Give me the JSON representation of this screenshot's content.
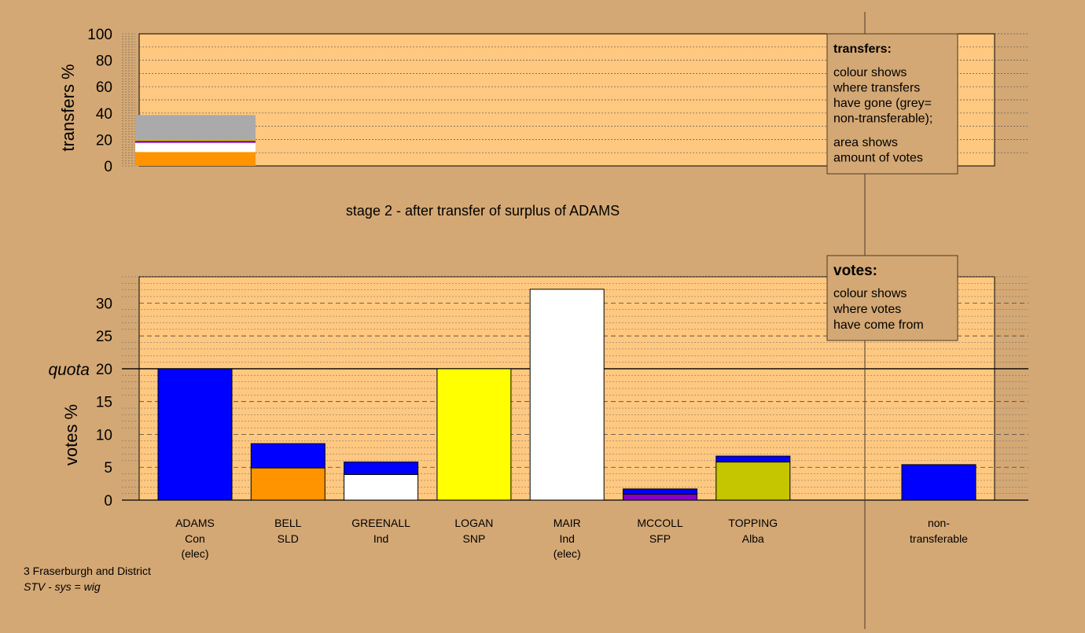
{
  "stage_title": "stage 2 - after transfer of surplus of ADAMS",
  "footer": {
    "line1": "3 Fraserburgh and District",
    "line2": "STV - sys = wig"
  },
  "legend_transfers": {
    "title": "transfers:",
    "lines1": [
      "colour shows",
      "where transfers",
      "have gone (grey=",
      "non-transferable);"
    ],
    "lines2": [
      "area shows",
      "amount of votes"
    ]
  },
  "legend_votes": {
    "title": "votes:",
    "lines": [
      "colour shows",
      "where votes",
      "have come from"
    ]
  },
  "colors": {
    "background": "#d4a874",
    "plot_bg": "#ffc880",
    "Con": "#0000ff",
    "SLD": "#ff9400",
    "Ind": "#ffffff",
    "SNP": "#ffff00",
    "SFP": "#8800cc",
    "Alba": "#c5c500",
    "nontransferable": "#aaaaaa"
  },
  "chart_data": [
    {
      "type": "bar",
      "ylabel": "transfers %",
      "ylim": [
        0,
        100
      ],
      "yticks": [
        0,
        20,
        40,
        60,
        80,
        100
      ],
      "segments": [
        {
          "party": "SLD",
          "value": 10.5
        },
        {
          "party": "Ind",
          "value": 7.0
        },
        {
          "party": "SFP",
          "value": 1.5
        },
        {
          "party": "Alba",
          "value": 1.0
        },
        {
          "party": "nontransferable",
          "value": 18.5
        }
      ]
    },
    {
      "type": "bar",
      "ylabel": "votes %",
      "ylim": [
        0,
        34
      ],
      "yticks": [
        0,
        5,
        10,
        15,
        20,
        25,
        30
      ],
      "quota_label": "quota",
      "quota": 20,
      "candidates": [
        {
          "name": "ADAMS",
          "party": "Con",
          "note": "(elec)",
          "segments": [
            {
              "party": "Con",
              "value": 20.0
            }
          ]
        },
        {
          "name": "BELL",
          "party": "SLD",
          "note": "",
          "segments": [
            {
              "party": "SLD",
              "value": 4.9
            },
            {
              "party": "Con",
              "value": 3.7
            }
          ]
        },
        {
          "name": "GREENALL",
          "party": "Ind",
          "note": "",
          "segments": [
            {
              "party": "Ind",
              "value": 3.9
            },
            {
              "party": "Con",
              "value": 1.9
            }
          ]
        },
        {
          "name": "LOGAN",
          "party": "SNP",
          "note": "",
          "segments": [
            {
              "party": "SNP",
              "value": 20.0
            }
          ]
        },
        {
          "name": "MAIR",
          "party": "Ind",
          "note": "(elec)",
          "segments": [
            {
              "party": "Ind",
              "value": 32.1
            }
          ]
        },
        {
          "name": "MCCOLL",
          "party": "SFP",
          "note": "",
          "segments": [
            {
              "party": "SFP",
              "value": 0.9
            },
            {
              "party": "Con",
              "value": 0.8
            }
          ]
        },
        {
          "name": "TOPPING",
          "party": "Alba",
          "note": "",
          "segments": [
            {
              "party": "Alba",
              "value": 5.8
            },
            {
              "party": "Con",
              "value": 0.9
            }
          ]
        }
      ],
      "nontransferable": {
        "label1": "non-",
        "label2": "transferable",
        "segments": [
          {
            "party": "Con",
            "value": 5.4
          }
        ]
      }
    }
  ]
}
